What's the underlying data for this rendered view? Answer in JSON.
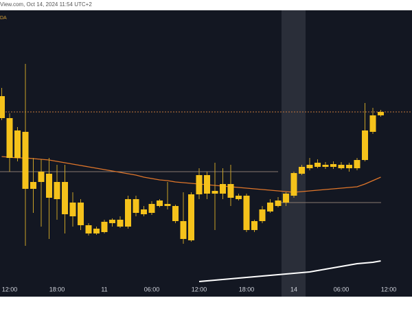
{
  "chart_data": {
    "type": "candlestick",
    "header": "View.com, Oct 14, 2024 11:54 UTC+2",
    "indicator_label": "DA",
    "ylim": [
      0,
      415
    ],
    "categories": [
      null,
      "12:00",
      null,
      null,
      null,
      null,
      null,
      "18:00",
      null,
      null,
      null,
      null,
      null,
      "11",
      null,
      null,
      null,
      null,
      null,
      "06:00",
      null,
      null,
      null,
      null,
      null,
      "12:00",
      null,
      null,
      null,
      null,
      null,
      "18:00",
      null,
      null,
      null,
      null,
      null,
      "14",
      null,
      null,
      null,
      null,
      null,
      "06:00",
      null,
      null,
      null,
      null,
      null,
      "12:00"
    ],
    "open": [
      290,
      258,
      200,
      238,
      155,
      165,
      177,
      140,
      165,
      115,
      135,
      102,
      90,
      92,
      110,
      110,
      100,
      140,
      118,
      120,
      130,
      133,
      130,
      108,
      80,
      147,
      175,
      148,
      148,
      162,
      145,
      145,
      95,
      108,
      122,
      130,
      135,
      145,
      177,
      185,
      193,
      190,
      187,
      190,
      190,
      185,
      197,
      238,
      262,
      null
    ],
    "high": [
      302,
      265,
      245,
      337,
      200,
      198,
      200,
      190,
      190,
      150,
      140,
      105,
      100,
      110,
      112,
      115,
      145,
      145,
      130,
      137,
      140,
      165,
      132,
      150,
      150,
      185,
      180,
      193,
      185,
      190,
      148,
      148,
      110,
      130,
      140,
      143,
      150,
      180,
      190,
      200,
      198,
      194,
      195,
      194,
      193,
      200,
      280,
      273,
      270,
      null
    ],
    "low": [
      255,
      180,
      195,
      72,
      120,
      100,
      82,
      110,
      90,
      100,
      95,
      87,
      88,
      90,
      100,
      98,
      97,
      115,
      115,
      117,
      128,
      125,
      105,
      75,
      78,
      140,
      140,
      95,
      140,
      130,
      138,
      92,
      92,
      105,
      120,
      128,
      130,
      142,
      175,
      182,
      185,
      184,
      184,
      183,
      180,
      182,
      195,
      235,
      260,
      null
    ],
    "close": [
      258,
      200,
      240,
      155,
      165,
      180,
      142,
      165,
      118,
      135,
      102,
      90,
      97,
      107,
      105,
      100,
      140,
      120,
      125,
      133,
      138,
      130,
      108,
      82,
      147,
      175,
      148,
      152,
      162,
      142,
      140,
      95,
      108,
      125,
      135,
      138,
      148,
      178,
      187,
      190,
      187,
      187,
      191,
      185,
      185,
      197,
      240,
      262,
      267,
      null
    ],
    "color": "#f5c21b",
    "series": [
      {
        "color": "#e0762a",
        "values": [
          202,
          201,
          200,
          200,
          199,
          198,
          197,
          195,
          193,
          191,
          189,
          187,
          185,
          183,
          181,
          179,
          177,
          175,
          172,
          170,
          168,
          167,
          165,
          164,
          163,
          162,
          161,
          160,
          159,
          158,
          157,
          156,
          155,
          154,
          153,
          152,
          151,
          150,
          151,
          152,
          153,
          154,
          155,
          156,
          157,
          158,
          162,
          167,
          172,
          null
        ]
      },
      {
        "color": "#ffffff",
        "values": [
          null,
          null,
          null,
          null,
          null,
          null,
          null,
          null,
          null,
          null,
          null,
          null,
          null,
          null,
          null,
          null,
          null,
          null,
          null,
          null,
          null,
          null,
          null,
          null,
          null,
          20,
          21,
          22,
          23,
          24,
          25,
          26,
          27,
          28,
          29,
          30,
          31,
          32,
          33,
          34,
          36,
          38,
          40,
          42,
          44,
          46,
          47,
          48,
          50,
          null
        ]
      }
    ],
    "hlines": [
      {
        "value": 267,
        "color": "#c8783a",
        "dashed": true
      },
      {
        "value": 180,
        "color": "#8a7a70",
        "dashed": false
      },
      {
        "value": 135,
        "color": "#8a7a70",
        "dashed": false
      }
    ]
  }
}
